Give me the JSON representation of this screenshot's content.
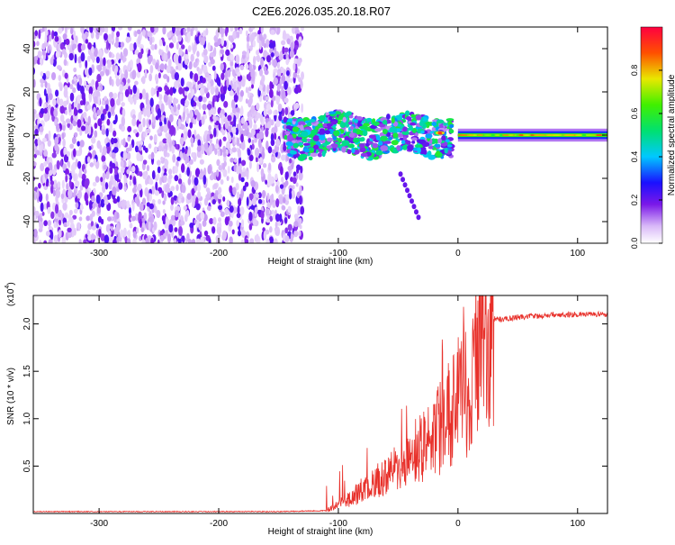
{
  "title": "C2E6.2026.035.20.18.R07",
  "chart_data": [
    {
      "type": "heatmap",
      "name": "spectrogram",
      "xlabel": "Height of straight line (km)",
      "ylabel": "Frequency (Hz)",
      "xlim": [
        -355,
        125
      ],
      "ylim": [
        -50,
        50
      ],
      "xticks": [
        -300,
        -200,
        -100,
        0,
        100
      ],
      "yticks": [
        -40,
        -20,
        0,
        20,
        40
      ],
      "colorbar": {
        "label": "Normalized spectral amplitude",
        "range": [
          0,
          1
        ],
        "ticks": [
          "0.0",
          "0.2",
          "0.4",
          "0.6",
          "0.8"
        ],
        "tick_values": [
          0,
          0.2,
          0.4,
          0.6,
          0.8
        ]
      },
      "regions": [
        {
          "description": "broadband noise",
          "x_range": [
            -355,
            -130
          ],
          "y_range": [
            -50,
            50
          ],
          "amplitude": 0.15
        },
        {
          "description": "transition band",
          "x_range": [
            -145,
            -5
          ],
          "y_range": [
            -10,
            10
          ],
          "amplitude": 0.35
        },
        {
          "description": "carrier line",
          "x_range": [
            0,
            125
          ],
          "y_range": [
            -3,
            3
          ],
          "amplitude": 0.6
        },
        {
          "description": "carrier peak",
          "x": -15,
          "y": 1,
          "amplitude": 0.95
        },
        {
          "description": "secondary tone",
          "x_range": [
            -48,
            -33
          ],
          "y_range": [
            -38,
            -18
          ],
          "amplitude": 0.2
        }
      ]
    },
    {
      "type": "line",
      "name": "snr",
      "xlabel": "Height of straight line (km)",
      "ylabel": "SNR (10 * v/v)",
      "y_multiplier": "(x10",
      "y_exponent": "4",
      "xlim": [
        -355,
        125
      ],
      "ylim": [
        0,
        2.3
      ],
      "xticks": [
        -300,
        -200,
        -100,
        0,
        100
      ],
      "yticks": [
        0.5,
        1.0,
        1.5,
        2.0
      ],
      "ytick_labels": [
        "0.5",
        "1.0",
        "1.5",
        "2.0"
      ],
      "series": [
        {
          "name": "SNR",
          "color": "#e8302a",
          "x": [
            -355,
            -300,
            -250,
            -200,
            -150,
            -110,
            -100,
            -90,
            -80,
            -70,
            -60,
            -50,
            -40,
            -30,
            -20,
            -10,
            0,
            5,
            10,
            15,
            20,
            25,
            30,
            40,
            50,
            60,
            70,
            80,
            90,
            100,
            110,
            125
          ],
          "y": [
            0.02,
            0.02,
            0.02,
            0.02,
            0.02,
            0.03,
            0.1,
            0.15,
            0.25,
            0.3,
            0.4,
            0.5,
            0.55,
            0.7,
            0.8,
            1.0,
            1.2,
            1.5,
            0.9,
            1.8,
            1.95,
            2.0,
            2.05,
            2.05,
            2.07,
            2.08,
            2.08,
            2.1,
            2.1,
            2.1,
            2.1,
            2.1
          ]
        }
      ]
    }
  ]
}
